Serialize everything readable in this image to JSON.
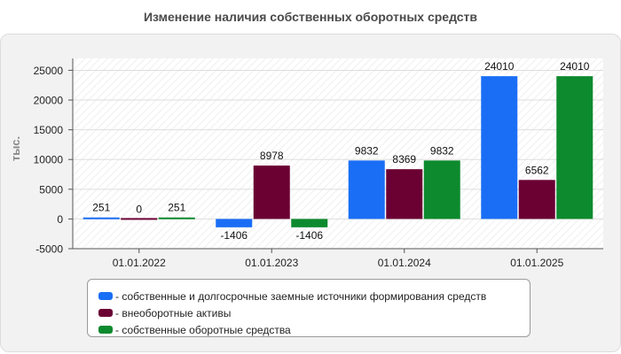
{
  "chart_data": {
    "type": "bar",
    "title": "Изменение наличия собственных оборотных средств",
    "xlabel": "",
    "ylabel": "тыс.",
    "ylim": [
      -5000,
      27000
    ],
    "yticks": [
      -5000,
      0,
      5000,
      10000,
      15000,
      20000,
      25000
    ],
    "categories": [
      "01.01.2022",
      "01.01.2023",
      "01.01.2024",
      "01.01.2025"
    ],
    "series": [
      {
        "name": "- собственные и долгосрочные заемные источники формирования средств",
        "color": "#1a6ef5",
        "values": [
          251,
          -1406,
          9832,
          24010
        ]
      },
      {
        "name": "- внеоборотные активы",
        "color": "#6b0033",
        "values": [
          0,
          8978,
          8369,
          6562
        ]
      },
      {
        "name": "- собственные оборотные средства",
        "color": "#0d8a2e",
        "values": [
          251,
          -1406,
          9832,
          24010
        ]
      }
    ],
    "legend_position": "bottom"
  }
}
